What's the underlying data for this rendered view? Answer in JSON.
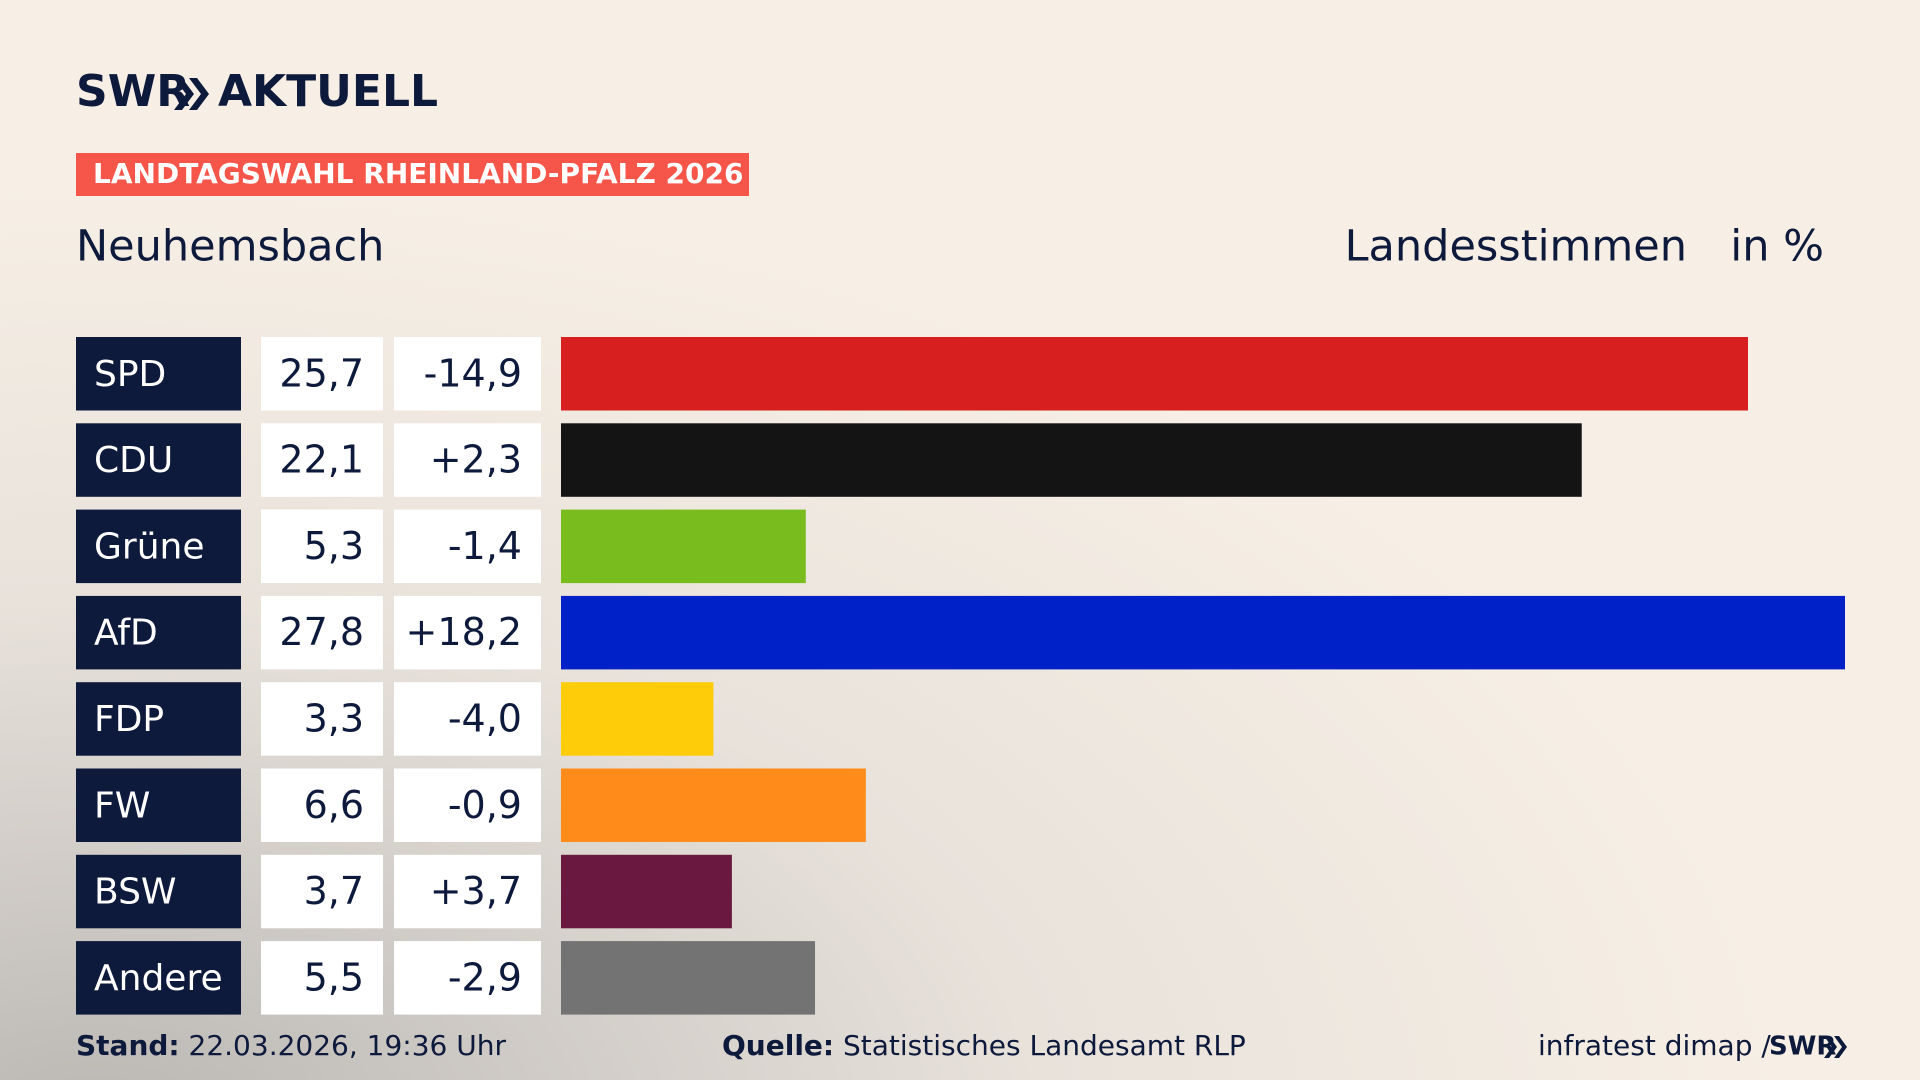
{
  "header": {
    "brand": "SWR",
    "brand_product": "AKTUELL",
    "tag": "LANDTAGSWAHL RHEINLAND-PFALZ 2026"
  },
  "chart_data": {
    "type": "bar",
    "title": "Neuhemsbach",
    "subtitle": "Landesstimmen",
    "unit": "in %",
    "categories": [
      "SPD",
      "CDU",
      "Grüne",
      "AfD",
      "FDP",
      "FW",
      "BSW",
      "Andere"
    ],
    "values": [
      25.7,
      22.1,
      5.3,
      27.8,
      3.3,
      6.6,
      3.7,
      5.5
    ],
    "value_labels": [
      "25,7",
      "22,1",
      "5,3",
      "27,8",
      "3,3",
      "6,6",
      "3,7",
      "5,5"
    ],
    "changes": [
      -14.9,
      2.3,
      -1.4,
      18.2,
      -4.0,
      -0.9,
      3.7,
      -2.9
    ],
    "change_labels": [
      "-14,9",
      "+2,3",
      "-1,4",
      "+18,2",
      "-4,0",
      "-0,9",
      "+3,7",
      "-2,9"
    ],
    "colors": [
      "#d81f1f",
      "#141414",
      "#78bc1e",
      "#0021c8",
      "#ffcc0a",
      "#ff8c1a",
      "#6a1840",
      "#737373"
    ]
  },
  "footer": {
    "stand_label": "Stand:",
    "stand": "22.03.2026, 19:36 Uhr",
    "source_label": "Quelle:",
    "source": "Statistisches Landesamt RLP",
    "credit": "infratest dimap /",
    "credit_brand": "SWR"
  }
}
